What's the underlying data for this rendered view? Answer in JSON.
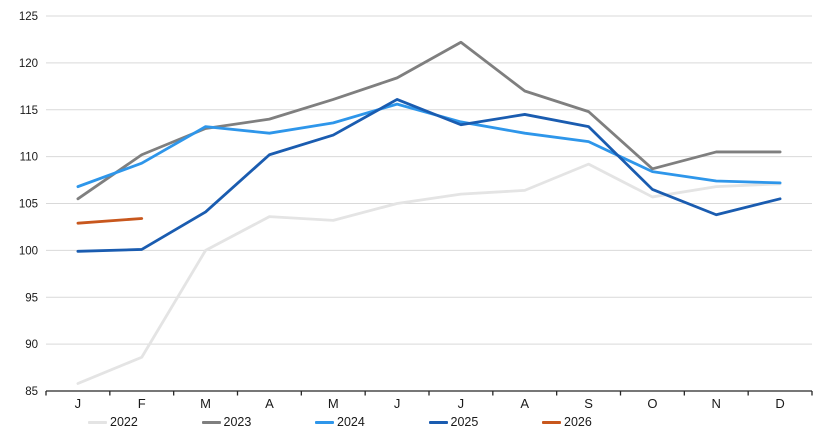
{
  "chart_data": {
    "type": "line",
    "title": "",
    "xlabel": "",
    "ylabel": "",
    "categories": [
      "J",
      "F",
      "M",
      "A",
      "M",
      "J",
      "J",
      "A",
      "S",
      "O",
      "N",
      "D"
    ],
    "series": [
      {
        "name": "2022",
        "color": "#e4e4e4",
        "values": [
          85.8,
          88.6,
          100.0,
          103.6,
          103.2,
          105.0,
          106.0,
          106.4,
          109.2,
          105.7,
          106.8,
          107.1
        ]
      },
      {
        "name": "2023",
        "color": "#7f7f7f",
        "values": [
          105.5,
          110.2,
          113.0,
          114.0,
          116.1,
          118.4,
          122.2,
          117.0,
          114.8,
          108.7,
          110.5,
          110.5
        ]
      },
      {
        "name": "2024",
        "color": "#2e96ea",
        "values": [
          106.8,
          109.3,
          113.2,
          112.5,
          113.6,
          115.6,
          113.7,
          112.5,
          111.6,
          108.4,
          107.4,
          107.2
        ]
      },
      {
        "name": "2025",
        "color": "#1a5cb0",
        "values": [
          99.9,
          100.1,
          104.1,
          110.2,
          112.3,
          116.1,
          113.4,
          114.5,
          113.2,
          106.5,
          103.8,
          105.5
        ]
      },
      {
        "name": "2026",
        "color": "#c8571d",
        "values": [
          102.9,
          103.4,
          null,
          null,
          null,
          null,
          null,
          null,
          null,
          null,
          null,
          null
        ]
      }
    ],
    "ylim": [
      85,
      125
    ],
    "ytick_step": 5,
    "ytick_labels": [
      "85",
      "90",
      "95",
      "100",
      "105",
      "110",
      "115",
      "120",
      "125"
    ],
    "grid": true,
    "gridline_color": "#d9d9d9",
    "axis_color": "#262626",
    "label_color": "#1a1a1a",
    "legend_position": "bottom"
  }
}
